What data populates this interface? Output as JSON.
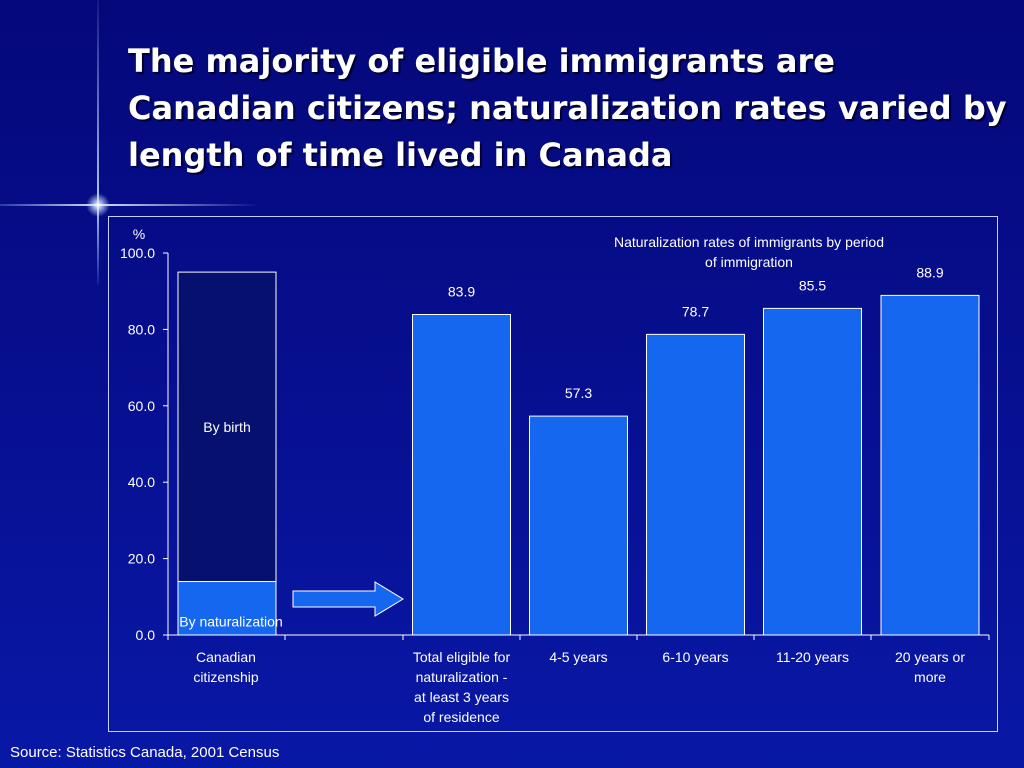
{
  "slide": {
    "title": "The majority of eligible immigrants are Canadian citizens; naturalization rates varied by length of time lived in Canada",
    "source": "Source: Statistics Canada, 2001 Census"
  },
  "colors": {
    "bar": "#1567f0",
    "bar_dark": "#06106e",
    "outline": "#ffffff",
    "background": "#05098a"
  },
  "chart_data": {
    "type": "bar",
    "title": "Naturalization rates of immigrants by period of immigration",
    "title_lines": [
      "Naturalization rates of immigrants by period",
      "of immigration"
    ],
    "ylabel": "%",
    "ylim": [
      0,
      100
    ],
    "yticks": [
      "100.0",
      "80.0",
      "60.0",
      "40.0",
      "20.0",
      "0.0"
    ],
    "stacked_bar": {
      "category": "Canadian citizenship",
      "category_lines": [
        "Canadian",
        "citizenship"
      ],
      "segments": [
        {
          "name": "By naturalization",
          "value": 14
        },
        {
          "name": "By birth",
          "value": 81
        }
      ]
    },
    "arrow": "right-arrow",
    "categories": [
      "Total eligible for naturalization - at least 3 years of residence",
      "4-5 years",
      "6-10 years",
      "11-20 years",
      "20 years or more"
    ],
    "category_lines": [
      [
        "Total eligible for",
        "naturalization -",
        "at least 3 years",
        "of residence"
      ],
      [
        "4-5 years"
      ],
      [
        "6-10 years"
      ],
      [
        "11-20 years"
      ],
      [
        "20 years or",
        "more"
      ]
    ],
    "values": [
      83.9,
      57.3,
      78.7,
      85.5,
      88.9
    ],
    "labels": [
      "83.9",
      "57.3",
      "78.7",
      "85.5",
      "88.9"
    ]
  }
}
